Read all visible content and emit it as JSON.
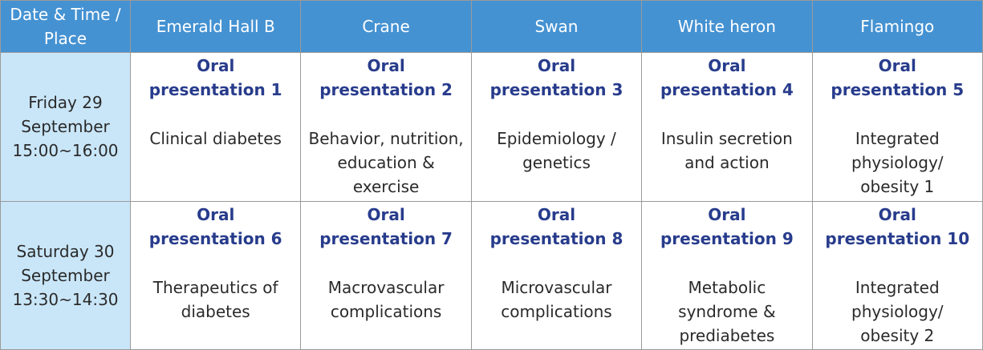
{
  "table": {
    "header": [
      "Date & Time /\nPlace",
      "Emerald Hall B",
      "Crane",
      "Swan",
      "White heron",
      "Flamingo"
    ],
    "rows": [
      {
        "time": "Friday 29\nSeptember\n15:00~16:00",
        "cells": [
          {
            "title": "Oral\npresentation 1",
            "subject": "Clinical diabetes"
          },
          {
            "title": "Oral\npresentation 2",
            "subject": "Behavior, nutrition,\neducation &\nexercise"
          },
          {
            "title": "Oral\npresentation 3",
            "subject": "Epidemiology /\ngenetics"
          },
          {
            "title": "Oral\npresentation 4",
            "subject": "Insulin secretion\nand action"
          },
          {
            "title": "Oral\npresentation 5",
            "subject": "Integrated\nphysiology/\nobesity 1"
          }
        ]
      },
      {
        "time": "Saturday 30\nSeptember\n13:30~14:30",
        "cells": [
          {
            "title": "Oral\npresentation 6",
            "subject": "Therapeutics of\ndiabetes"
          },
          {
            "title": "Oral\npresentation 7",
            "subject": "Macrovascular\ncomplications"
          },
          {
            "title": "Oral\npresentation 8",
            "subject": "Microvascular\ncomplications"
          },
          {
            "title": "Oral\npresentation 9",
            "subject": "Metabolic\nsyndrome &\nprediabetes"
          },
          {
            "title": "Oral\npresentation 10",
            "subject": "Integrated\nphysiology/\nobesity 2"
          }
        ]
      }
    ]
  }
}
